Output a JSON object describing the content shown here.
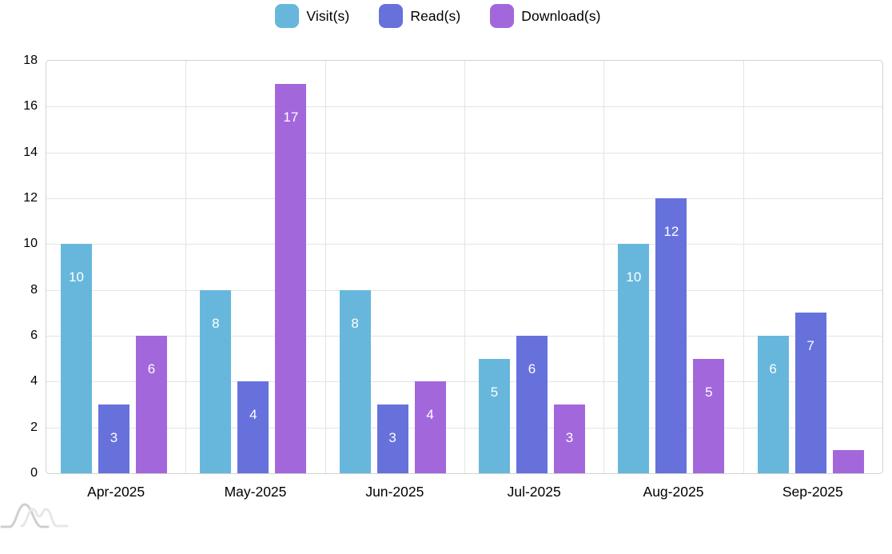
{
  "chart_data": {
    "type": "bar",
    "title": "",
    "categories": [
      "Apr-2025",
      "May-2025",
      "Jun-2025",
      "Jul-2025",
      "Aug-2025",
      "Sep-2025"
    ],
    "series": [
      {
        "name": "Visit(s)",
        "color": "#67B7DC",
        "values": [
          10,
          8,
          8,
          5,
          10,
          6
        ]
      },
      {
        "name": "Read(s)",
        "color": "#6771DC",
        "values": [
          3,
          4,
          3,
          6,
          12,
          7
        ]
      },
      {
        "name": "Download(s)",
        "color": "#A367DC",
        "values": [
          6,
          17,
          4,
          3,
          5,
          1
        ]
      }
    ],
    "xlabel": "",
    "ylabel": "",
    "ylim": [
      0,
      18
    ],
    "ytick_step": 2,
    "grid": true,
    "legend_position": "top",
    "value_label_style": "white, inside top of bar, hidden on very short bars",
    "value_label_color": "#ffffff",
    "gridline_color": "#e4e4e4",
    "plot_border_color": "#d2d2d2",
    "background_color": "#ffffff"
  },
  "icons": {
    "watermark": "wave-chart-logo"
  }
}
